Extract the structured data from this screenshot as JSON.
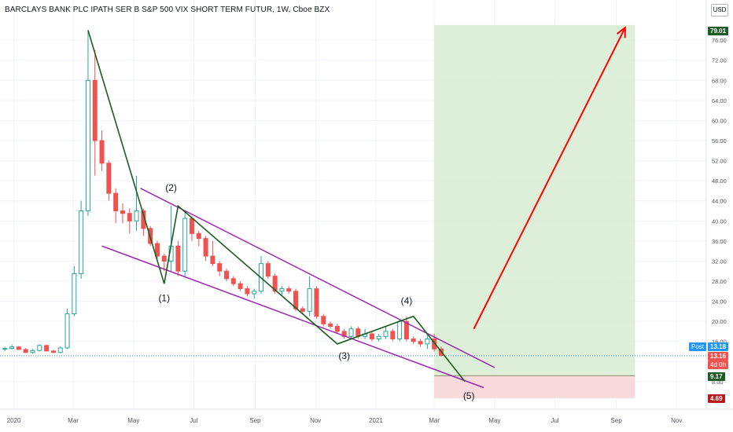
{
  "header": {
    "title": "BARCLAYS BANK PLC IPATH SER B S&P 500 VIX SHORT TERM FUTUR, 1W, Cboe BZX",
    "currency": "USD"
  },
  "price_labels": {
    "target": "79.01",
    "post_label": "Post",
    "post_price": "13.18",
    "last_price": "13.16",
    "countdown": "4d 0h",
    "entry": "9.17",
    "stop": "4.69"
  },
  "colors": {
    "up": "#26a69a",
    "down": "#ef5350",
    "wave": "#1b5e20",
    "channel": "#9c27b0",
    "arrow": "#ff0000",
    "profit_zone": "#d7ecd1",
    "loss_zone": "#f7d5d8",
    "post_blue": "#2196f3",
    "entry_green": "#1e5b28",
    "stop_red": "#b71c1c"
  },
  "chart_data": {
    "type": "candlestick",
    "interval": "1W",
    "x_axis": {
      "tick_labels": [
        "2020",
        "Mar",
        "May",
        "Jul",
        "Sep",
        "Nov",
        "2021",
        "Mar",
        "May",
        "Jul",
        "Sep",
        "Nov"
      ],
      "tick_dates": [
        "2020-01-01",
        "2020-03-01",
        "2020-05-01",
        "2020-07-01",
        "2020-09-01",
        "2020-11-01",
        "2021-01-01",
        "2021-03-01",
        "2021-05-01",
        "2021-07-01",
        "2021-09-01",
        "2021-11-01"
      ],
      "range": [
        "2019-12-18",
        "2021-12-01"
      ]
    },
    "y_axis": {
      "range": [
        2.5,
        84
      ],
      "ticks": [
        8,
        12,
        16,
        20,
        24,
        28,
        32,
        36,
        40,
        44,
        48,
        52,
        56,
        60,
        64,
        68,
        72,
        76
      ]
    },
    "candles": [
      [
        "2019-12-23",
        14.5,
        14.9,
        14.1,
        14.6
      ],
      [
        "2019-12-30",
        14.6,
        15.4,
        14.4,
        14.9
      ],
      [
        "2020-01-06",
        14.9,
        15.1,
        14.3,
        14.4
      ],
      [
        "2020-01-13",
        14.4,
        14.7,
        13.7,
        13.8
      ],
      [
        "2020-01-20",
        13.8,
        14.5,
        13.6,
        14.2
      ],
      [
        "2020-01-27",
        14.2,
        15.4,
        14.0,
        15.2
      ],
      [
        "2020-02-03",
        15.2,
        15.4,
        14.0,
        14.1
      ],
      [
        "2020-02-10",
        14.1,
        14.3,
        13.7,
        13.8
      ],
      [
        "2020-02-17",
        13.8,
        15.0,
        13.6,
        14.7
      ],
      [
        "2020-02-24",
        14.7,
        22.5,
        14.5,
        21.5
      ],
      [
        "2020-03-02",
        21.5,
        31.0,
        21.0,
        29.5
      ],
      [
        "2020-03-09",
        29.5,
        44.0,
        28.5,
        42.0
      ],
      [
        "2020-03-16",
        42.0,
        78.0,
        41.0,
        68.0
      ],
      [
        "2020-03-23",
        68.0,
        74.0,
        49.0,
        56.0
      ],
      [
        "2020-03-30",
        56.0,
        58.0,
        50.0,
        51.5
      ],
      [
        "2020-04-06",
        51.5,
        52.0,
        44.0,
        45.5
      ],
      [
        "2020-04-13",
        45.5,
        46.5,
        39.5,
        42.0
      ],
      [
        "2020-04-20",
        42.0,
        43.5,
        39.5,
        41.5
      ],
      [
        "2020-04-27",
        41.5,
        42.5,
        37.5,
        40.0
      ],
      [
        "2020-05-04",
        40.0,
        49.0,
        38.0,
        42.0
      ],
      [
        "2020-05-11",
        42.0,
        42.5,
        37.0,
        38.5
      ],
      [
        "2020-05-18",
        38.5,
        39.0,
        35.0,
        35.5
      ],
      [
        "2020-05-25",
        35.5,
        36.0,
        32.0,
        33.0
      ],
      [
        "2020-06-01",
        33.0,
        33.5,
        30.0,
        32.0
      ],
      [
        "2020-06-08",
        32.0,
        43.0,
        30.0,
        35.0
      ],
      [
        "2020-06-15",
        35.0,
        36.0,
        29.0,
        30.0
      ],
      [
        "2020-06-22",
        30.0,
        42.0,
        29.0,
        40.5
      ],
      [
        "2020-06-29",
        40.5,
        41.0,
        36.0,
        37.5
      ],
      [
        "2020-07-06",
        37.5,
        38.0,
        35.0,
        36.5
      ],
      [
        "2020-07-13",
        36.5,
        37.0,
        32.0,
        33.0
      ],
      [
        "2020-07-20",
        33.0,
        36.0,
        31.0,
        31.5
      ],
      [
        "2020-07-27",
        31.5,
        32.0,
        29.0,
        30.0
      ],
      [
        "2020-08-03",
        30.0,
        30.5,
        28.0,
        28.5
      ],
      [
        "2020-08-10",
        28.5,
        29.0,
        27.0,
        27.5
      ],
      [
        "2020-08-17",
        27.5,
        28.0,
        26.0,
        26.5
      ],
      [
        "2020-08-24",
        26.5,
        27.0,
        25.0,
        25.5
      ],
      [
        "2020-08-31",
        25.5,
        26.5,
        24.5,
        26.0
      ],
      [
        "2020-09-07",
        26.0,
        33.0,
        25.5,
        31.5
      ],
      [
        "2020-09-14",
        31.5,
        32.0,
        28.5,
        29.0
      ],
      [
        "2020-09-21",
        29.0,
        29.5,
        25.5,
        26.0
      ],
      [
        "2020-09-28",
        26.0,
        27.0,
        25.0,
        26.5
      ],
      [
        "2020-10-05",
        26.5,
        27.0,
        25.5,
        26.0
      ],
      [
        "2020-10-12",
        26.0,
        26.5,
        22.0,
        22.5
      ],
      [
        "2020-10-19",
        22.5,
        23.0,
        21.5,
        22.0
      ],
      [
        "2020-10-26",
        22.0,
        29.0,
        21.0,
        26.5
      ],
      [
        "2020-11-02",
        26.5,
        27.0,
        20.5,
        21.0
      ],
      [
        "2020-11-09",
        21.0,
        21.5,
        19.0,
        19.5
      ],
      [
        "2020-11-16",
        19.5,
        20.0,
        18.5,
        19.0
      ],
      [
        "2020-11-23",
        19.0,
        19.5,
        17.5,
        18.0
      ],
      [
        "2020-11-30",
        18.0,
        18.5,
        16.5,
        17.0
      ],
      [
        "2020-12-07",
        17.0,
        19.0,
        16.5,
        18.5
      ],
      [
        "2020-12-14",
        18.5,
        19.0,
        16.5,
        17.0
      ],
      [
        "2020-12-21",
        17.0,
        18.5,
        16.5,
        17.5
      ],
      [
        "2020-12-28",
        17.5,
        18.0,
        16.0,
        16.5
      ],
      [
        "2021-01-04",
        16.5,
        17.5,
        16.0,
        17.0
      ],
      [
        "2021-01-11",
        17.0,
        19.0,
        16.5,
        18.0
      ],
      [
        "2021-01-18",
        18.0,
        18.5,
        16.0,
        16.5
      ],
      [
        "2021-01-25",
        16.5,
        20.5,
        16.0,
        20.0
      ],
      [
        "2021-02-01",
        20.0,
        21.0,
        16.0,
        16.5
      ],
      [
        "2021-02-08",
        16.5,
        17.0,
        15.5,
        16.0
      ],
      [
        "2021-02-15",
        16.0,
        16.5,
        15.0,
        15.5
      ],
      [
        "2021-02-22",
        15.5,
        17.5,
        14.5,
        16.5
      ],
      [
        "2021-03-01",
        16.5,
        17.5,
        14.0,
        14.5
      ],
      [
        "2021-03-08",
        14.5,
        15.0,
        13.0,
        13.2
      ]
    ],
    "wave_labels": [
      "(1)",
      "(2)",
      "(3)",
      "(4)",
      "(5)"
    ],
    "wave_points": [
      [
        "2020-03-16",
        78.0
      ],
      [
        "2020-06-01",
        27.5
      ],
      [
        "2020-06-15",
        43.0
      ],
      [
        "2020-11-23",
        15.5
      ],
      [
        "2021-02-08",
        21.0
      ],
      [
        "2021-04-01",
        8.0
      ]
    ],
    "wave_label_points": [
      [
        "2020-06-01",
        24.0
      ],
      [
        "2020-06-08",
        46.0
      ],
      [
        "2020-11-30",
        12.5
      ],
      [
        "2021-02-01",
        23.5
      ],
      [
        "2021-04-05",
        4.5
      ]
    ],
    "channel_upper": [
      [
        "2020-05-08",
        46.5
      ],
      [
        "2021-05-01",
        10.8
      ]
    ],
    "channel_lower": [
      [
        "2020-03-30",
        35.0
      ],
      [
        "2021-04-20",
        6.8
      ]
    ],
    "profit_zone": {
      "from": "2021-03-01",
      "to": "2021-09-20",
      "top": 79.01,
      "bottom": 9.17
    },
    "loss_zone": {
      "from": "2021-03-01",
      "to": "2021-09-20",
      "top": 9.17,
      "bottom": 4.69
    },
    "arrow": [
      [
        "2021-04-10",
        18.5
      ],
      [
        "2021-09-10",
        78.5
      ]
    ],
    "last_price_line": 13.16
  }
}
